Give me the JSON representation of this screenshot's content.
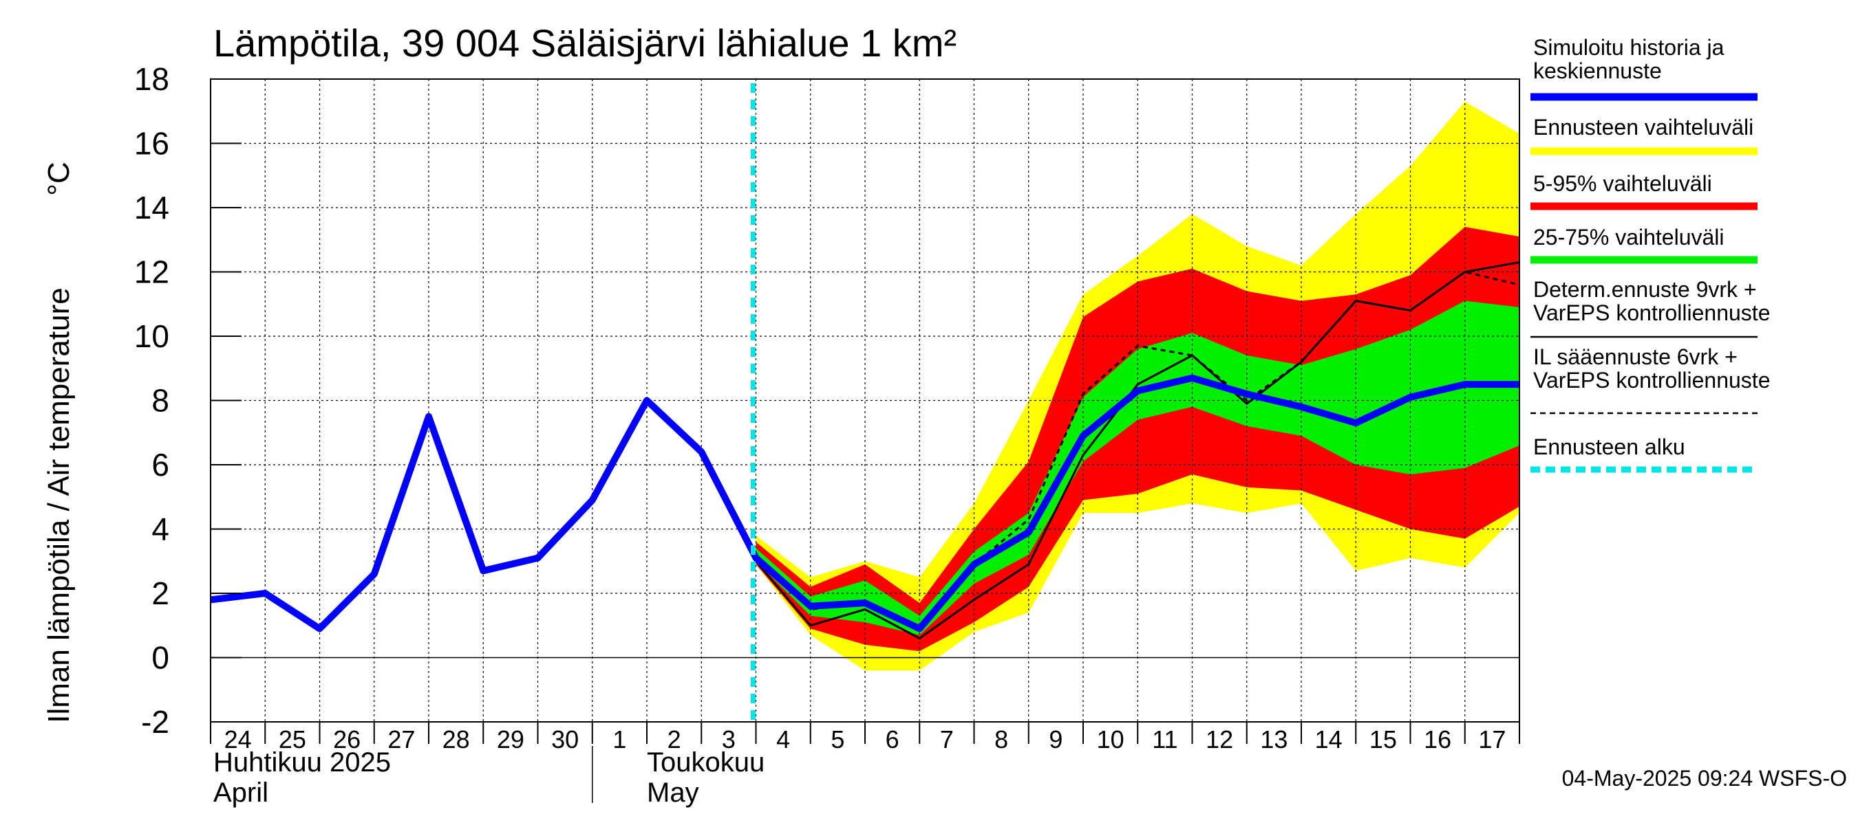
{
  "chart_data": {
    "type": "area",
    "title": "Lämpötila, 39 004 Säläisjärvi lähialue 1 km²",
    "ylabel": "Ilman lämpötila / Air temperature",
    "yunit": "°C",
    "ylim": [
      -2,
      18
    ],
    "yticks": [
      "18",
      "16",
      "14",
      "12",
      "10",
      "8",
      "6",
      "4",
      "2",
      "0",
      "-2"
    ],
    "xticks": [
      "24",
      "25",
      "26",
      "27",
      "28",
      "29",
      "30",
      "1",
      "2",
      "3",
      "4",
      "5",
      "6",
      "7",
      "8",
      "9",
      "10",
      "11",
      "12",
      "13",
      "14",
      "15",
      "16",
      "17"
    ],
    "month_labels": {
      "april_fi": "Huhtikuu  2025",
      "april_en": "April",
      "may_fi": "Toukokuu",
      "may_en": "May"
    },
    "grid": true,
    "legend_position": "right",
    "forecast_start": "2025-05-04",
    "history": {
      "name": "Simuloitu historia ja keskiennuste",
      "x": [
        0,
        1,
        2,
        3,
        4,
        5,
        6,
        7,
        8,
        9,
        10
      ],
      "y": [
        1.8,
        2.0,
        0.9,
        2.6,
        7.5,
        2.7,
        3.1,
        4.9,
        8.0,
        6.4,
        3.1
      ]
    },
    "forecast_x": [
      10,
      11,
      12,
      13,
      14,
      15,
      16,
      17,
      18,
      19,
      20,
      21,
      22,
      23,
      24
    ],
    "mean_forecast": [
      3.1,
      1.6,
      1.7,
      0.9,
      2.9,
      3.9,
      6.9,
      8.3,
      8.7,
      8.2,
      7.8,
      7.3,
      8.1,
      8.5,
      8.5
    ],
    "yellow_upper": [
      3.8,
      2.5,
      3.0,
      2.5,
      4.8,
      8.0,
      11.3,
      12.5,
      13.8,
      12.8,
      12.2,
      13.8,
      15.3,
      17.3,
      16.3
    ],
    "yellow_lower": [
      2.9,
      0.7,
      -0.4,
      -0.4,
      0.8,
      1.4,
      4.5,
      4.5,
      4.8,
      4.5,
      4.8,
      2.7,
      3.1,
      2.8,
      4.5
    ],
    "red_upper": [
      3.6,
      2.2,
      2.9,
      1.7,
      4.0,
      6.1,
      10.6,
      11.7,
      12.1,
      11.4,
      11.1,
      11.3,
      11.9,
      13.4,
      13.1
    ],
    "red_lower": [
      2.9,
      0.9,
      0.4,
      0.2,
      1.1,
      2.2,
      4.9,
      5.1,
      5.7,
      5.3,
      5.2,
      4.6,
      4.0,
      3.7,
      4.7
    ],
    "green_upper": [
      3.4,
      1.9,
      2.4,
      1.3,
      3.3,
      4.5,
      8.1,
      9.6,
      10.1,
      9.4,
      9.1,
      9.6,
      10.2,
      11.1,
      10.9
    ],
    "green_lower": [
      3.0,
      1.3,
      1.1,
      0.7,
      2.3,
      3.2,
      6.1,
      7.4,
      7.8,
      7.2,
      6.9,
      6.0,
      5.7,
      5.9,
      6.6
    ],
    "determ": {
      "name": "Determ.ennuste 9vrk + VarEPS kontrolliennuste",
      "x": [
        7,
        8,
        9,
        10,
        11,
        12,
        13,
        14,
        15,
        16,
        17,
        18,
        19,
        20,
        21,
        22,
        23,
        24
      ],
      "y": [
        4.9,
        8.0,
        6.4,
        3.0,
        1.0,
        1.5,
        0.6,
        1.8,
        2.9,
        6.3,
        8.5,
        9.4,
        7.9,
        9.2,
        11.1,
        10.8,
        12.0,
        12.3
      ]
    },
    "il": {
      "name": "IL sääennuste 6vrk + VarEPS kontrolliennuste",
      "x": [
        7,
        8,
        9,
        10,
        11,
        12,
        13,
        14,
        15,
        16,
        17,
        18,
        19,
        20,
        21,
        22,
        23,
        24
      ],
      "y": [
        4.9,
        8.0,
        6.4,
        3.2,
        1.5,
        1.7,
        0.9,
        2.9,
        4.3,
        8.2,
        9.7,
        9.4,
        8.0,
        9.2,
        11.1,
        10.8,
        12.0,
        11.6
      ]
    },
    "legend": [
      {
        "label_lines": [
          "Simuloitu historia ja",
          "keskiennuste"
        ],
        "color": "#0000ff",
        "style": "thick"
      },
      {
        "label_lines": [
          "Ennusteen vaihteluväli"
        ],
        "color": "#ffff00",
        "style": "thick"
      },
      {
        "label_lines": [
          "5-95% vaihteluväli"
        ],
        "color": "#ff0000",
        "style": "thick"
      },
      {
        "label_lines": [
          "25-75% vaihteluväli"
        ],
        "color": "#00ee00",
        "style": "thick"
      },
      {
        "label_lines": [
          "Determ.ennuste 9vrk +",
          "VarEPS kontrolliennuste"
        ],
        "color": "#000000",
        "style": "solid"
      },
      {
        "label_lines": [
          "IL sääennuste 6vrk  +",
          "  VarEPS kontrolliennuste"
        ],
        "color": "#000000",
        "style": "dashed"
      },
      {
        "label_lines": [
          "Ennusteen alku"
        ],
        "color": "#00e5e5",
        "style": "cyan-dash"
      }
    ],
    "colors": {
      "yellow": "#ffff00",
      "red": "#ff0000",
      "green": "#00ee00",
      "blue": "#0000ff",
      "black": "#000000",
      "cyan": "#00e5e5"
    },
    "timestamp": "04-May-2025 09:24 WSFS-O"
  }
}
